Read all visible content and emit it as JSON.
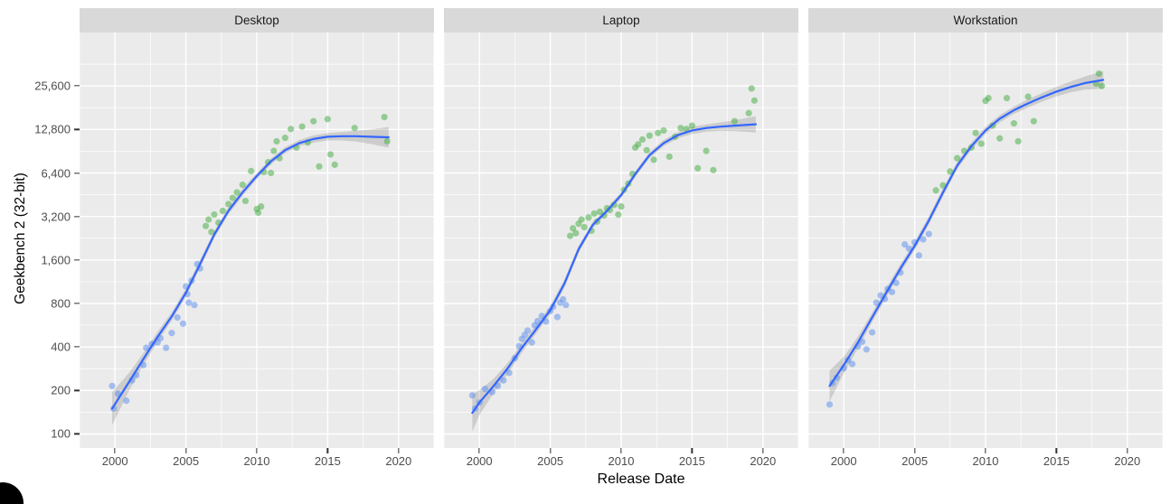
{
  "figure": {
    "xlabel": "Release Date",
    "ylabel": "Geekbench 2 (32-bit)",
    "x_domain": [
      1997.5,
      2022.5
    ],
    "y_domain_log": [
      80,
      60000
    ],
    "x_ticks": [
      "2000",
      "2005",
      "2010",
      "2015",
      "2020"
    ],
    "x_tick_values": [
      2000,
      2005,
      2010,
      2015,
      2020
    ],
    "x_minor": [
      1997.5,
      2002.5,
      2007.5,
      2012.5,
      2017.5,
      2022.5
    ],
    "y_ticks": [
      {
        "v": 100,
        "label": "100"
      },
      {
        "v": 200,
        "label": "200"
      },
      {
        "v": 400,
        "label": "400"
      },
      {
        "v": 800,
        "label": "800"
      },
      {
        "v": 1600,
        "label": "1,600"
      },
      {
        "v": 3200,
        "label": "3,200"
      },
      {
        "v": 6400,
        "label": "6,400"
      },
      {
        "v": 12800,
        "label": "12,800"
      },
      {
        "v": 25600,
        "label": "25,600"
      }
    ],
    "colors": {
      "panel_bg": "#EBEBEB",
      "strip_bg": "#D9D9D9",
      "grid": "#FFFFFF",
      "point_blue": "#6494ED",
      "point_green": "#4CAE4A",
      "smooth_line": "#3366FF",
      "ci_band": "#000000",
      "tick_text": "#4D4D4D"
    }
  },
  "chart_data": [
    {
      "type": "scatter",
      "title": "Desktop",
      "xlabel": "Release Date",
      "ylabel": "Geekbench 2 (32-bit)",
      "x_range": [
        1997.5,
        2022.5
      ],
      "y_range_log": [
        80,
        60000
      ],
      "series": [
        {
          "name": "blue-points",
          "color_key": "point_blue",
          "points": [
            [
              1999.8,
              215
            ],
            [
              1999.9,
              150
            ],
            [
              2000.2,
              190
            ],
            [
              2000.8,
              170
            ],
            [
              2001.2,
              235
            ],
            [
              2001.5,
              255
            ],
            [
              2002.0,
              300
            ],
            [
              2002.2,
              395
            ],
            [
              2002.6,
              420
            ],
            [
              2003.0,
              430
            ],
            [
              2003.2,
              460
            ],
            [
              2003.6,
              395
            ],
            [
              2004.0,
              500
            ],
            [
              2004.4,
              640
            ],
            [
              2004.8,
              580
            ],
            [
              2005.0,
              1050
            ],
            [
              2005.1,
              930
            ],
            [
              2005.2,
              810
            ],
            [
              2005.4,
              1150
            ],
            [
              2005.6,
              780
            ],
            [
              2005.8,
              1500
            ],
            [
              2006.0,
              1400
            ]
          ]
        },
        {
          "name": "green-points",
          "color_key": "point_green",
          "points": [
            [
              2006.4,
              2750
            ],
            [
              2006.6,
              3050
            ],
            [
              2006.8,
              2500
            ],
            [
              2007.0,
              3300
            ],
            [
              2007.3,
              2900
            ],
            [
              2007.6,
              3500
            ],
            [
              2008.0,
              3900
            ],
            [
              2008.3,
              4300
            ],
            [
              2008.6,
              4700
            ],
            [
              2009.0,
              5300
            ],
            [
              2009.2,
              4100
            ],
            [
              2009.6,
              6600
            ],
            [
              2010.0,
              3600
            ],
            [
              2010.1,
              3400
            ],
            [
              2010.3,
              3750
            ],
            [
              2010.5,
              6500
            ],
            [
              2010.8,
              7600
            ],
            [
              2011.0,
              6400
            ],
            [
              2011.2,
              9100
            ],
            [
              2011.4,
              10600
            ],
            [
              2011.6,
              8100
            ],
            [
              2012.0,
              11200
            ],
            [
              2012.4,
              12900
            ],
            [
              2012.8,
              9600
            ],
            [
              2013.2,
              13400
            ],
            [
              2013.6,
              10400
            ],
            [
              2014.0,
              14600
            ],
            [
              2014.4,
              7100
            ],
            [
              2015.0,
              15100
            ],
            [
              2015.2,
              8600
            ],
            [
              2015.5,
              7300
            ],
            [
              2016.9,
              13100
            ],
            [
              2019.0,
              15600
            ],
            [
              2019.2,
              10600
            ]
          ]
        }
      ],
      "smooth": [
        [
          1999.8,
          150,
          115,
          195
        ],
        [
          2001,
          230,
          200,
          265
        ],
        [
          2002,
          330,
          300,
          363
        ],
        [
          2003,
          470,
          435,
          508
        ],
        [
          2004,
          650,
          607,
          696
        ],
        [
          2005,
          950,
          888,
          1017
        ],
        [
          2006,
          1500,
          1402,
          1605
        ],
        [
          2007,
          2400,
          2264,
          2544
        ],
        [
          2008,
          3500,
          3302,
          3710
        ],
        [
          2009,
          4700,
          4434,
          4982
        ],
        [
          2010,
          6100,
          5810,
          6405
        ],
        [
          2011,
          7700,
          7333,
          8085
        ],
        [
          2012,
          9200,
          8762,
          9660
        ],
        [
          2013,
          10300,
          9810,
          10815
        ],
        [
          2014,
          11000,
          10377,
          11660
        ],
        [
          2015,
          11400,
          10755,
          12084
        ],
        [
          2016,
          11500,
          10748,
          12305
        ],
        [
          2017,
          11500,
          10550,
          12535
        ],
        [
          2018,
          11400,
          10179,
          12768
        ],
        [
          2019.3,
          11300,
          9576,
          13334
        ]
      ]
    },
    {
      "type": "scatter",
      "title": "Laptop",
      "xlabel": "Release Date",
      "ylabel": "Geekbench 2 (32-bit)",
      "x_range": [
        1997.5,
        2022.5
      ],
      "y_range_log": [
        80,
        60000
      ],
      "series": [
        {
          "name": "blue-points",
          "color_key": "point_blue",
          "points": [
            [
              1999.5,
              185
            ],
            [
              1999.7,
              150
            ],
            [
              2000.0,
              165
            ],
            [
              2000.4,
              205
            ],
            [
              2000.9,
              195
            ],
            [
              2001.3,
              215
            ],
            [
              2001.7,
              235
            ],
            [
              2002.1,
              265
            ],
            [
              2002.5,
              335
            ],
            [
              2002.8,
              405
            ],
            [
              2003.0,
              455
            ],
            [
              2003.2,
              485
            ],
            [
              2003.4,
              520
            ],
            [
              2003.7,
              430
            ],
            [
              2003.9,
              565
            ],
            [
              2004.1,
              605
            ],
            [
              2004.4,
              655
            ],
            [
              2004.7,
              600
            ],
            [
              2005.0,
              710
            ],
            [
              2005.2,
              760
            ],
            [
              2005.5,
              645
            ],
            [
              2005.7,
              810
            ],
            [
              2005.9,
              855
            ],
            [
              2006.1,
              780
            ]
          ]
        },
        {
          "name": "green-points",
          "color_key": "point_green",
          "points": [
            [
              2006.4,
              2350
            ],
            [
              2006.6,
              2650
            ],
            [
              2006.8,
              2450
            ],
            [
              2007.0,
              2850
            ],
            [
              2007.2,
              3050
            ],
            [
              2007.4,
              2700
            ],
            [
              2007.7,
              3150
            ],
            [
              2007.9,
              2550
            ],
            [
              2008.1,
              3350
            ],
            [
              2008.3,
              2950
            ],
            [
              2008.5,
              3450
            ],
            [
              2008.8,
              3250
            ],
            [
              2009.0,
              3650
            ],
            [
              2009.2,
              3550
            ],
            [
              2009.5,
              3850
            ],
            [
              2009.8,
              3300
            ],
            [
              2010.0,
              3750
            ],
            [
              2010.2,
              4900
            ],
            [
              2010.5,
              5400
            ],
            [
              2010.8,
              6300
            ],
            [
              2011.0,
              9600
            ],
            [
              2011.2,
              10100
            ],
            [
              2011.5,
              10900
            ],
            [
              2011.8,
              9200
            ],
            [
              2012.0,
              11600
            ],
            [
              2012.3,
              7900
            ],
            [
              2012.6,
              12100
            ],
            [
              2013.0,
              12600
            ],
            [
              2013.4,
              8300
            ],
            [
              2013.8,
              11400
            ],
            [
              2014.2,
              13100
            ],
            [
              2014.6,
              12900
            ],
            [
              2015.0,
              13600
            ],
            [
              2015.4,
              6900
            ],
            [
              2016.0,
              9100
            ],
            [
              2016.5,
              6700
            ],
            [
              2018.0,
              14600
            ],
            [
              2019.0,
              16600
            ],
            [
              2019.2,
              24600
            ],
            [
              2019.4,
              20300
            ]
          ]
        }
      ],
      "smooth": [
        [
          1999.5,
          140,
          104,
          189
        ],
        [
          2000,
          165,
          135,
          201
        ],
        [
          2001,
          215,
          192,
          241
        ],
        [
          2002,
          285,
          261,
          311
        ],
        [
          2003,
          395,
          366,
          427
        ],
        [
          2004,
          530,
          495,
          567
        ],
        [
          2005,
          720,
          673,
          770
        ],
        [
          2006,
          1100,
          1028,
          1177
        ],
        [
          2007,
          1900,
          1792,
          2014
        ],
        [
          2008,
          2800,
          2667,
          2940
        ],
        [
          2009,
          3500,
          3333,
          3675
        ],
        [
          2010,
          4500,
          4286,
          4725
        ],
        [
          2011,
          6300,
          6000,
          6615
        ],
        [
          2012,
          8500,
          8095,
          8925
        ],
        [
          2013,
          10300,
          9810,
          10815
        ],
        [
          2014,
          11700,
          11143,
          12285
        ],
        [
          2015,
          12600,
          11887,
          13356
        ],
        [
          2016,
          13100,
          12358,
          13886
        ],
        [
          2017,
          13400,
          12523,
          14338
        ],
        [
          2018,
          13600,
          12477,
          14824
        ],
        [
          2019.5,
          13900,
          12193,
          15846
        ]
      ]
    },
    {
      "type": "scatter",
      "title": "Workstation",
      "xlabel": "Release Date",
      "ylabel": "Geekbench 2 (32-bit)",
      "x_range": [
        1997.5,
        2022.5
      ],
      "y_range_log": [
        80,
        60000
      ],
      "series": [
        {
          "name": "blue-points",
          "color_key": "point_blue",
          "points": [
            [
              1999.0,
              160
            ],
            [
              1999.2,
              225
            ],
            [
              1999.5,
              245
            ],
            [
              2000.0,
              285
            ],
            [
              2000.3,
              325
            ],
            [
              2000.6,
              305
            ],
            [
              2001.0,
              405
            ],
            [
              2001.3,
              435
            ],
            [
              2001.6,
              385
            ],
            [
              2002.0,
              505
            ],
            [
              2002.3,
              810
            ],
            [
              2002.6,
              910
            ],
            [
              2002.9,
              860
            ],
            [
              2003.1,
              1010
            ],
            [
              2003.4,
              960
            ],
            [
              2003.7,
              1110
            ],
            [
              2004.0,
              1310
            ],
            [
              2004.3,
              2050
            ],
            [
              2004.6,
              1920
            ],
            [
              2005.0,
              2120
            ],
            [
              2005.3,
              1720
            ],
            [
              2005.6,
              2220
            ],
            [
              2006.0,
              2420
            ]
          ]
        },
        {
          "name": "green-points",
          "color_key": "point_green",
          "points": [
            [
              2006.5,
              4850
            ],
            [
              2007.0,
              5250
            ],
            [
              2007.5,
              6550
            ],
            [
              2008.0,
              8100
            ],
            [
              2008.5,
              9100
            ],
            [
              2009.0,
              9600
            ],
            [
              2009.3,
              12100
            ],
            [
              2009.7,
              10200
            ],
            [
              2010.0,
              20200
            ],
            [
              2010.2,
              21100
            ],
            [
              2010.5,
              13600
            ],
            [
              2011.0,
              11100
            ],
            [
              2011.5,
              21100
            ],
            [
              2012.0,
              14100
            ],
            [
              2012.3,
              10600
            ],
            [
              2013.0,
              21600
            ],
            [
              2013.4,
              14600
            ],
            [
              2017.8,
              26600
            ],
            [
              2018.0,
              31200
            ],
            [
              2018.2,
              25600
            ]
          ]
        }
      ],
      "smooth": [
        [
          1999,
          215,
          168,
          275
        ],
        [
          2000,
          300,
          263,
          342
        ],
        [
          2001,
          430,
          391,
          473
        ],
        [
          2002,
          640,
          593,
          691
        ],
        [
          2003,
          950,
          880,
          1026
        ],
        [
          2004,
          1400,
          1308,
          1498
        ],
        [
          2005,
          2000,
          1869,
          2140
        ],
        [
          2006,
          3000,
          2804,
          3210
        ],
        [
          2007,
          4700,
          4393,
          5029
        ],
        [
          2008,
          7200,
          6792,
          7632
        ],
        [
          2009,
          9800,
          9245,
          10388
        ],
        [
          2010,
          12600,
          11887,
          13356
        ],
        [
          2011,
          15200,
          14340,
          16112
        ],
        [
          2012,
          17400,
          16415,
          18444
        ],
        [
          2013,
          19400,
          18131,
          20758
        ],
        [
          2014,
          21400,
          20000,
          22898
        ],
        [
          2015,
          23400,
          21667,
          25272
        ],
        [
          2016,
          25200,
          23119,
          27468
        ],
        [
          2017,
          26800,
          24144,
          29748
        ],
        [
          2018.3,
          28200,
          24522,
          32430
        ]
      ]
    }
  ]
}
